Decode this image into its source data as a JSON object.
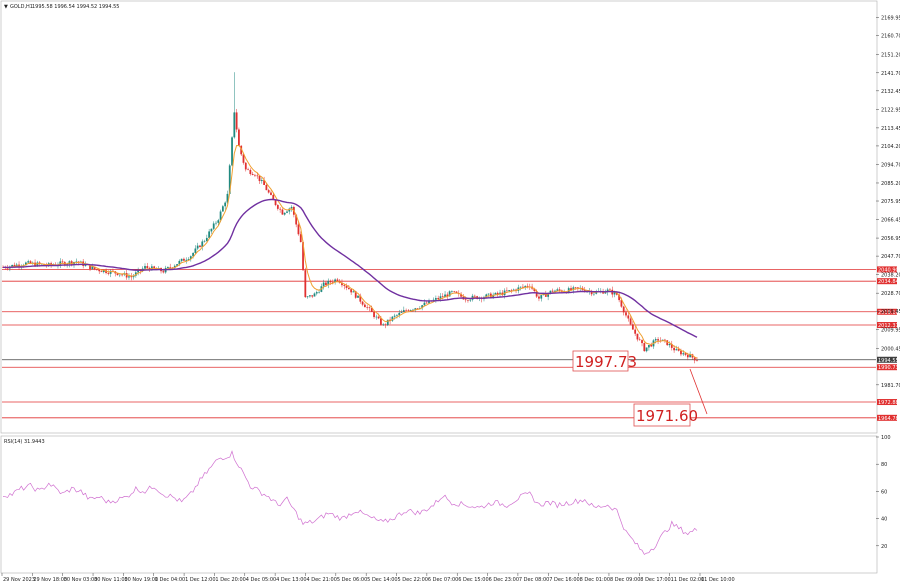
{
  "header": {
    "symbol": "GOLD,H1",
    "ohlc": "1995.58 1996.54 1994.52 1994.55"
  },
  "rsi_label": "RSI(14) 31.9443",
  "callouts": [
    {
      "text": "1997.73",
      "price": 1997.73
    },
    {
      "text": "1971.60",
      "price": 1971.6
    }
  ],
  "chart_data": [
    {
      "type": "candlestick",
      "title": "",
      "yrange": [
        1957.0,
        2178.0
      ],
      "price_ticks": [
        "2169.95",
        "2160.70",
        "2151.20",
        "2141.70",
        "2132.45",
        "2122.95",
        "2113.45",
        "2104.20",
        "2094.70",
        "2085.20",
        "2075.95",
        "2066.45",
        "2056.95",
        "2047.70",
        "2038.20",
        "2028.70",
        "2019.45",
        "2009.95",
        "2000.45",
        "1981.70"
      ],
      "x_labels": [
        "29 Nov 2023",
        "29 Nov 18:00",
        "30 Nov 03:00",
        "30 Nov 11:00",
        "30 Nov 19:00",
        "1 Dec 04:00",
        "1 Dec 12:00",
        "1 Dec 20:00",
        "4 Dec 05:00",
        "4 Dec 13:00",
        "4 Dec 21:00",
        "5 Dec 06:00",
        "5 Dec 14:00",
        "5 Dec 22:00",
        "6 Dec 07:00",
        "6 Dec 15:00",
        "6 Dec 23:00",
        "7 Dec 08:00",
        "7 Dec 16:00",
        "8 Dec 01:00",
        "8 Dec 09:00",
        "8 Dec 17:00",
        "11 Dec 02:00",
        "11 Dec 10:00"
      ],
      "levels": [
        {
          "price": 2040.9,
          "label": "2040.90",
          "color": "#e03030"
        },
        {
          "price": 2034.84,
          "label": "2034.84",
          "color": "#e03030"
        },
        {
          "price": 2019.16,
          "label": "2019.16",
          "color": "#e03030"
        },
        {
          "price": 2012.37,
          "label": "2012.37",
          "color": "#e03030"
        },
        {
          "price": 1994.55,
          "label": "1994.55",
          "color": "#404040"
        },
        {
          "price": 1990.73,
          "label": "1990.73",
          "color": "#e03030"
        },
        {
          "price": 1972.88,
          "label": "1972.88",
          "color": "#e03030"
        },
        {
          "price": 1964.78,
          "label": "1964.78",
          "color": "#e03030"
        }
      ],
      "price_keypoints": [
        [
          0,
          2042
        ],
        [
          10,
          2044
        ],
        [
          20,
          2043
        ],
        [
          32,
          2045
        ],
        [
          40,
          2041
        ],
        [
          50,
          2039
        ],
        [
          56,
          2037
        ],
        [
          62,
          2042
        ],
        [
          70,
          2040
        ],
        [
          76,
          2044
        ],
        [
          82,
          2048
        ],
        [
          88,
          2056
        ],
        [
          94,
          2067
        ],
        [
          98,
          2079
        ],
        [
          101,
          2122
        ],
        [
          103,
          2104
        ],
        [
          106,
          2092
        ],
        [
          110,
          2090
        ],
        [
          114,
          2084
        ],
        [
          118,
          2076
        ],
        [
          122,
          2070
        ],
        [
          126,
          2073
        ],
        [
          130,
          2055
        ],
        [
          132,
          2026
        ],
        [
          136,
          2028
        ],
        [
          140,
          2033
        ],
        [
          146,
          2036
        ],
        [
          152,
          2030
        ],
        [
          160,
          2020
        ],
        [
          166,
          2012
        ],
        [
          170,
          2016
        ],
        [
          176,
          2020
        ],
        [
          182,
          2022
        ],
        [
          190,
          2026
        ],
        [
          196,
          2029
        ],
        [
          202,
          2026
        ],
        [
          210,
          2027
        ],
        [
          216,
          2028
        ],
        [
          222,
          2030
        ],
        [
          230,
          2033
        ],
        [
          234,
          2026
        ],
        [
          240,
          2030
        ],
        [
          246,
          2030
        ],
        [
          252,
          2031
        ],
        [
          258,
          2029
        ],
        [
          264,
          2030
        ],
        [
          268,
          2028
        ],
        [
          274,
          2012
        ],
        [
          280,
          2000
        ],
        [
          286,
          2005
        ],
        [
          290,
          2003
        ],
        [
          294,
          1999
        ],
        [
          299,
          1997
        ],
        [
          303,
          1994.55
        ]
      ],
      "ma_fast_color": "#f0a030",
      "ma_slow_color": "#7030a0",
      "candle_up_color": "#208a80",
      "candle_down_color": "#e03030",
      "rsi": {
        "yrange": [
          0,
          100
        ],
        "ticks": [
          "100",
          "80",
          "60",
          "40",
          "20"
        ],
        "color": "#d070d0",
        "values_keypoints": [
          [
            0,
            57
          ],
          [
            4,
            58
          ],
          [
            8,
            62
          ],
          [
            12,
            64
          ],
          [
            16,
            60
          ],
          [
            20,
            66
          ],
          [
            26,
            58
          ],
          [
            30,
            62
          ],
          [
            34,
            60
          ],
          [
            38,
            54
          ],
          [
            42,
            56
          ],
          [
            46,
            52
          ],
          [
            50,
            54
          ],
          [
            54,
            56
          ],
          [
            58,
            62
          ],
          [
            62,
            60
          ],
          [
            66,
            64
          ],
          [
            70,
            58
          ],
          [
            74,
            56
          ],
          [
            78,
            52
          ],
          [
            82,
            58
          ],
          [
            86,
            68
          ],
          [
            90,
            76
          ],
          [
            94,
            84
          ],
          [
            98,
            86
          ],
          [
            100,
            88
          ],
          [
            104,
            76
          ],
          [
            108,
            64
          ],
          [
            112,
            60
          ],
          [
            116,
            56
          ],
          [
            120,
            50
          ],
          [
            124,
            54
          ],
          [
            128,
            44
          ],
          [
            131,
            36
          ],
          [
            136,
            38
          ],
          [
            142,
            44
          ],
          [
            148,
            40
          ],
          [
            154,
            46
          ],
          [
            160,
            41
          ],
          [
            166,
            37
          ],
          [
            170,
            40
          ],
          [
            176,
            46
          ],
          [
            182,
            44
          ],
          [
            188,
            50
          ],
          [
            192,
            57
          ],
          [
            196,
            52
          ],
          [
            202,
            50
          ],
          [
            208,
            48
          ],
          [
            214,
            52
          ],
          [
            220,
            50
          ],
          [
            226,
            56
          ],
          [
            230,
            58
          ],
          [
            234,
            50
          ],
          [
            238,
            52
          ],
          [
            242,
            50
          ],
          [
            248,
            52
          ],
          [
            254,
            54
          ],
          [
            258,
            48
          ],
          [
            264,
            50
          ],
          [
            268,
            46
          ],
          [
            272,
            30
          ],
          [
            276,
            22
          ],
          [
            280,
            14
          ],
          [
            284,
            19
          ],
          [
            288,
            28
          ],
          [
            292,
            36
          ],
          [
            296,
            32
          ],
          [
            299,
            29
          ],
          [
            303,
            32
          ]
        ]
      }
    }
  ]
}
